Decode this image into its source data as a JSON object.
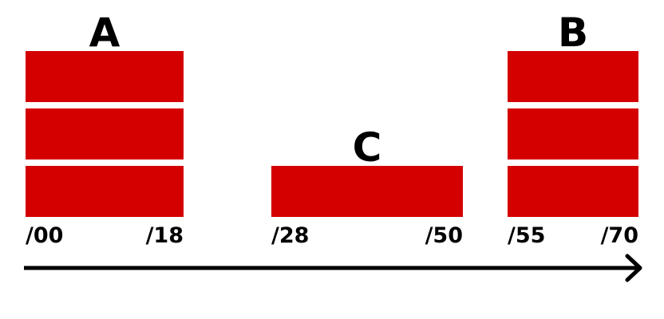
{
  "diagram": {
    "block_color": "#d40000",
    "arrow_color": "#000000",
    "groups": [
      {
        "label": "A",
        "start": 0,
        "end": 18,
        "stack": 3
      },
      {
        "label": "C",
        "start": 28,
        "end": 50,
        "stack": 1
      },
      {
        "label": "B",
        "start": 55,
        "end": 70,
        "stack": 3
      }
    ],
    "ticks": [
      {
        "value": 0,
        "label": "/00"
      },
      {
        "value": 18,
        "label": "/18"
      },
      {
        "value": 28,
        "label": "/28"
      },
      {
        "value": 50,
        "label": "/50"
      },
      {
        "value": 55,
        "label": "/55"
      },
      {
        "value": 70,
        "label": "/70"
      }
    ]
  }
}
